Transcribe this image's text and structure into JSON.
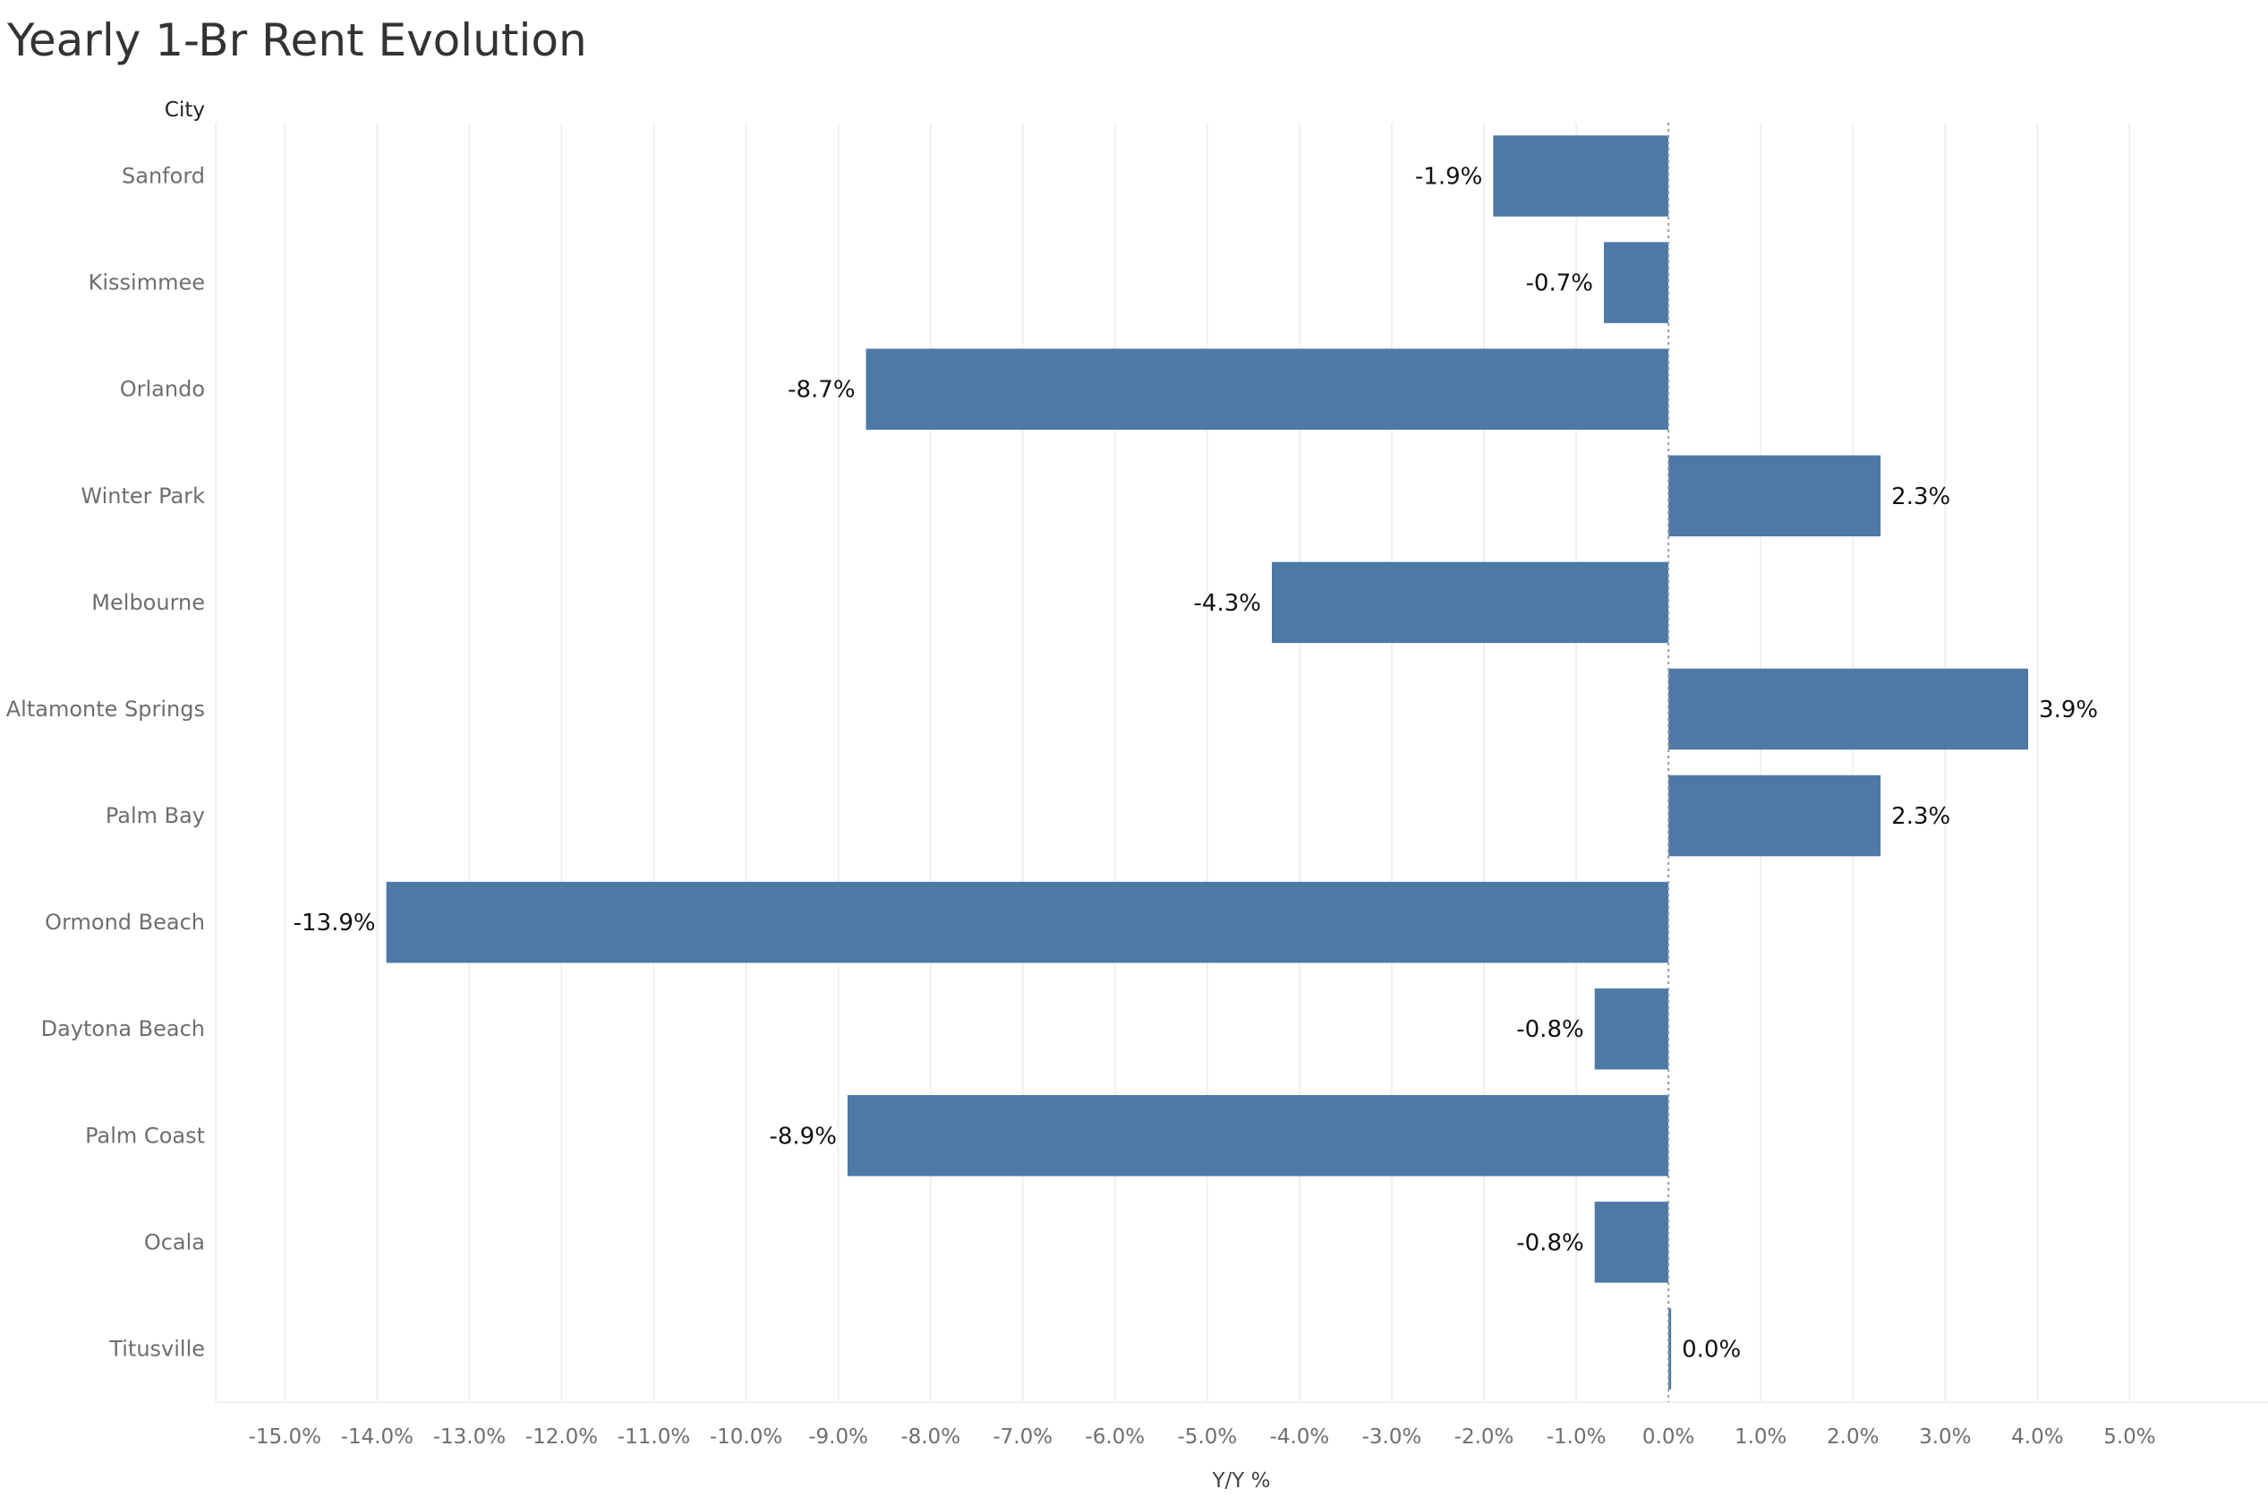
{
  "chart_data": {
    "type": "bar",
    "orientation": "horizontal",
    "title": "Yearly 1-Br Rent Evolution",
    "category_header": "City",
    "xlabel": "Y/Y %",
    "categories": [
      "Sanford",
      "Kissimmee",
      "Orlando",
      "Winter Park",
      "Melbourne",
      "Altamonte Springs",
      "Palm Bay",
      "Ormond Beach",
      "Daytona Beach",
      "Palm Coast",
      "Ocala",
      "Titusville"
    ],
    "values": [
      -1.9,
      -0.7,
      -8.7,
      2.3,
      -4.3,
      3.9,
      2.3,
      -13.9,
      -0.8,
      -8.9,
      -0.8,
      0.0
    ],
    "value_labels": [
      "-1.9%",
      "-0.7%",
      "-8.7%",
      "2.3%",
      "-4.3%",
      "3.9%",
      "2.3%",
      "-13.9%",
      "-0.8%",
      "-8.9%",
      "-0.8%",
      "0.0%"
    ],
    "xlim": [
      -15.75,
      6.5
    ],
    "xticks": [
      -15,
      -14,
      -13,
      -12,
      -11,
      -10,
      -9,
      -8,
      -7,
      -6,
      -5,
      -4,
      -3,
      -2,
      -1,
      0,
      1,
      2,
      3,
      4,
      5
    ],
    "xtick_labels": [
      "-15.0%",
      "-14.0%",
      "-13.0%",
      "-12.0%",
      "-11.0%",
      "-10.0%",
      "-9.0%",
      "-8.0%",
      "-7.0%",
      "-6.0%",
      "-5.0%",
      "-4.0%",
      "-3.0%",
      "-2.0%",
      "-1.0%",
      "0.0%",
      "1.0%",
      "2.0%",
      "3.0%",
      "4.0%",
      "5.0%"
    ],
    "grid": true,
    "colors": {
      "bar": "#4e79a7",
      "grid": "#ececec",
      "zero_line": "#9a9a9a"
    }
  }
}
